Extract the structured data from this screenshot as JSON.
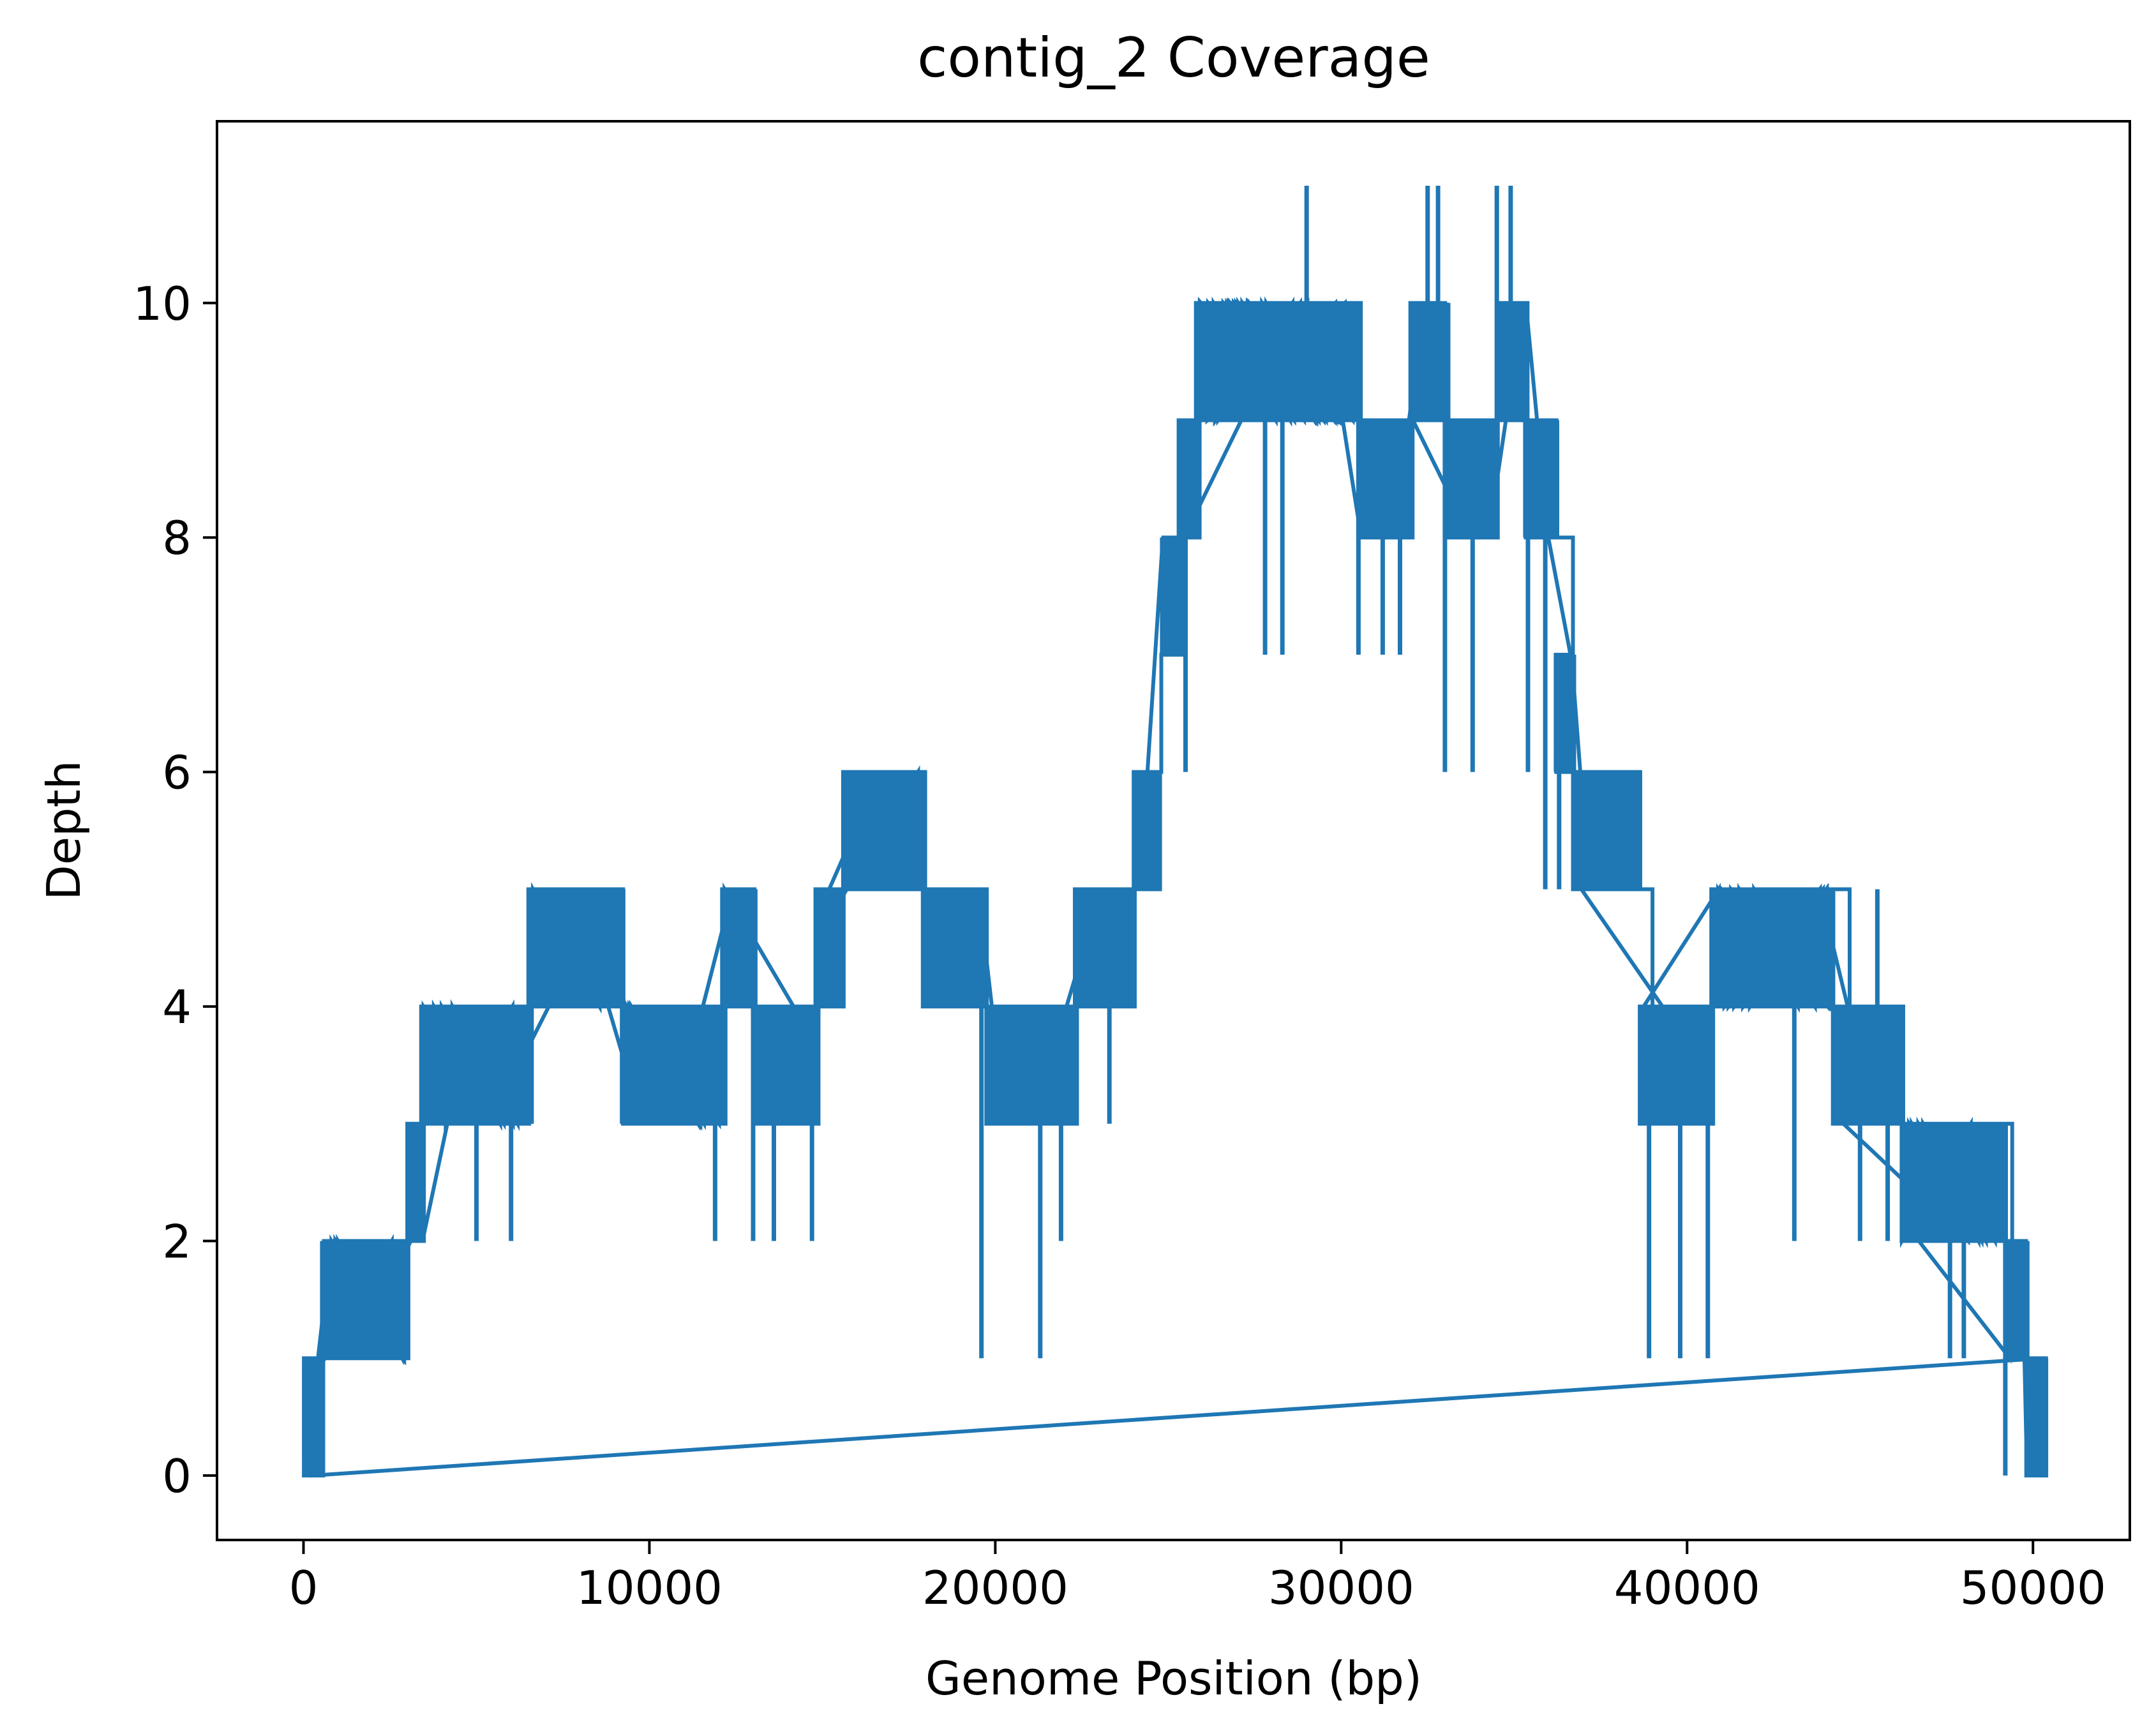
{
  "chart_data": {
    "type": "line",
    "title": "contig_2 Coverage",
    "xlabel": "Genome Position (bp)",
    "ylabel": "Depth",
    "xlim": [
      -2500,
      52800
    ],
    "ylim": [
      -0.55,
      11.55
    ],
    "x_ticks": [
      0,
      10000,
      20000,
      30000,
      40000,
      50000
    ],
    "y_ticks": [
      0,
      2,
      4,
      6,
      8,
      10
    ],
    "grid": false,
    "line_color": "#1f77b4",
    "series": [
      {
        "x": [
          0,
          500,
          700,
          3000,
          3400,
          6500,
          9200,
          12100,
          13000,
          14800,
          15600,
          17900,
          19700,
          21500,
          22300,
          24000,
          24800,
          25300,
          25800,
          28500,
          30500,
          32000,
          33000,
          34500,
          35300,
          36200,
          36700,
          38600,
          39000,
          40700,
          44200,
          44700,
          45500,
          46200,
          48000,
          49200,
          49400,
          49800,
          50300
        ],
        "y": [
          1,
          1,
          2,
          3,
          4,
          5,
          4,
          5,
          4,
          5,
          6,
          5,
          4,
          4,
          5,
          6,
          7,
          9,
          10,
          10,
          9,
          10,
          9,
          10,
          9,
          8,
          6,
          5,
          4,
          5,
          5,
          4,
          4,
          3,
          3,
          3,
          2,
          1,
          1
        ]
      }
    ],
    "fluctuations": [
      {
        "from": 0,
        "to": 500,
        "low": 0,
        "high": 1,
        "n": 12
      },
      {
        "from": 500,
        "to": 3000,
        "low": 1,
        "high": 2,
        "n": 60
      },
      {
        "from": 3000,
        "to": 3400,
        "low": 2,
        "high": 3,
        "n": 10
      },
      {
        "from": 3400,
        "to": 6500,
        "low": 3,
        "high": 4,
        "n": 80
      },
      {
        "from": 6500,
        "to": 9200,
        "low": 4,
        "high": 5,
        "n": 70
      },
      {
        "from": 9200,
        "to": 12100,
        "low": 3,
        "high": 4,
        "n": 80
      },
      {
        "from": 12100,
        "to": 13000,
        "low": 4,
        "high": 5,
        "n": 24
      },
      {
        "from": 13000,
        "to": 14800,
        "low": 3,
        "high": 4,
        "n": 50
      },
      {
        "from": 14800,
        "to": 15600,
        "low": 4,
        "high": 5,
        "n": 20
      },
      {
        "from": 15600,
        "to": 17900,
        "low": 5,
        "high": 6,
        "n": 65
      },
      {
        "from": 17900,
        "to": 19700,
        "low": 4,
        "high": 5,
        "n": 45
      },
      {
        "from": 19700,
        "to": 21500,
        "low": 3,
        "high": 4,
        "n": 45
      },
      {
        "from": 21500,
        "to": 22300,
        "low": 3,
        "high": 4,
        "n": 20
      },
      {
        "from": 22300,
        "to": 24000,
        "low": 4,
        "high": 5,
        "n": 45
      },
      {
        "from": 24000,
        "to": 24800,
        "low": 5,
        "high": 6,
        "n": 18
      },
      {
        "from": 24800,
        "to": 25300,
        "low": 7,
        "high": 8,
        "n": 12
      },
      {
        "from": 25300,
        "to": 25800,
        "low": 8,
        "high": 9,
        "n": 12
      },
      {
        "from": 25800,
        "to": 30500,
        "low": 9,
        "high": 10,
        "n": 130
      },
      {
        "from": 30500,
        "to": 32000,
        "low": 8,
        "high": 9,
        "n": 40
      },
      {
        "from": 32000,
        "to": 33000,
        "low": 9,
        "high": 10,
        "n": 26
      },
      {
        "from": 33000,
        "to": 34500,
        "low": 8,
        "high": 9,
        "n": 40
      },
      {
        "from": 34500,
        "to": 35300,
        "low": 9,
        "high": 10,
        "n": 20
      },
      {
        "from": 35300,
        "to": 36200,
        "low": 8,
        "high": 9,
        "n": 24
      },
      {
        "from": 36200,
        "to": 36700,
        "low": 6,
        "high": 7,
        "n": 14
      },
      {
        "from": 36700,
        "to": 38600,
        "low": 5,
        "high": 6,
        "n": 50
      },
      {
        "from": 38600,
        "to": 40700,
        "low": 3,
        "high": 4,
        "n": 55
      },
      {
        "from": 40700,
        "to": 44200,
        "low": 4,
        "high": 5,
        "n": 90
      },
      {
        "from": 44200,
        "to": 46200,
        "low": 3,
        "high": 4,
        "n": 52
      },
      {
        "from": 46200,
        "to": 49200,
        "low": 2,
        "high": 3,
        "n": 78
      },
      {
        "from": 49200,
        "to": 49800,
        "low": 1,
        "high": 2,
        "n": 14
      },
      {
        "from": 49800,
        "to": 50300,
        "low": 0,
        "high": 1,
        "n": 14
      }
    ],
    "spikes": [
      {
        "x": 29000,
        "y": 11
      },
      {
        "x": 32500,
        "y": 11
      },
      {
        "x": 32800,
        "y": 11
      },
      {
        "x": 34500,
        "y": 11
      },
      {
        "x": 34900,
        "y": 11
      },
      {
        "x": 25500,
        "y": 6
      },
      {
        "x": 27800,
        "y": 7
      },
      {
        "x": 28300,
        "y": 7
      },
      {
        "x": 30500,
        "y": 7
      },
      {
        "x": 31200,
        "y": 7
      },
      {
        "x": 31700,
        "y": 7
      },
      {
        "x": 33000,
        "y": 6
      },
      {
        "x": 33800,
        "y": 6
      },
      {
        "x": 35400,
        "y": 6
      },
      {
        "x": 35900,
        "y": 5
      },
      {
        "x": 36300,
        "y": 5
      },
      {
        "x": 5000,
        "y": 2
      },
      {
        "x": 6000,
        "y": 2
      },
      {
        "x": 11900,
        "y": 2
      },
      {
        "x": 13000,
        "y": 2
      },
      {
        "x": 13600,
        "y": 2
      },
      {
        "x": 14700,
        "y": 2
      },
      {
        "x": 19600,
        "y": 1
      },
      {
        "x": 21300,
        "y": 1
      },
      {
        "x": 21900,
        "y": 2
      },
      {
        "x": 23300,
        "y": 3
      },
      {
        "x": 38900,
        "y": 1
      },
      {
        "x": 39800,
        "y": 1
      },
      {
        "x": 40600,
        "y": 1
      },
      {
        "x": 43100,
        "y": 2
      },
      {
        "x": 45000,
        "y": 2
      },
      {
        "x": 45800,
        "y": 2
      },
      {
        "x": 45500,
        "y": 5
      },
      {
        "x": 47600,
        "y": 1
      },
      {
        "x": 48000,
        "y": 1
      },
      {
        "x": 49200,
        "y": 0
      },
      {
        "x": 49400,
        "y": 1
      }
    ]
  }
}
